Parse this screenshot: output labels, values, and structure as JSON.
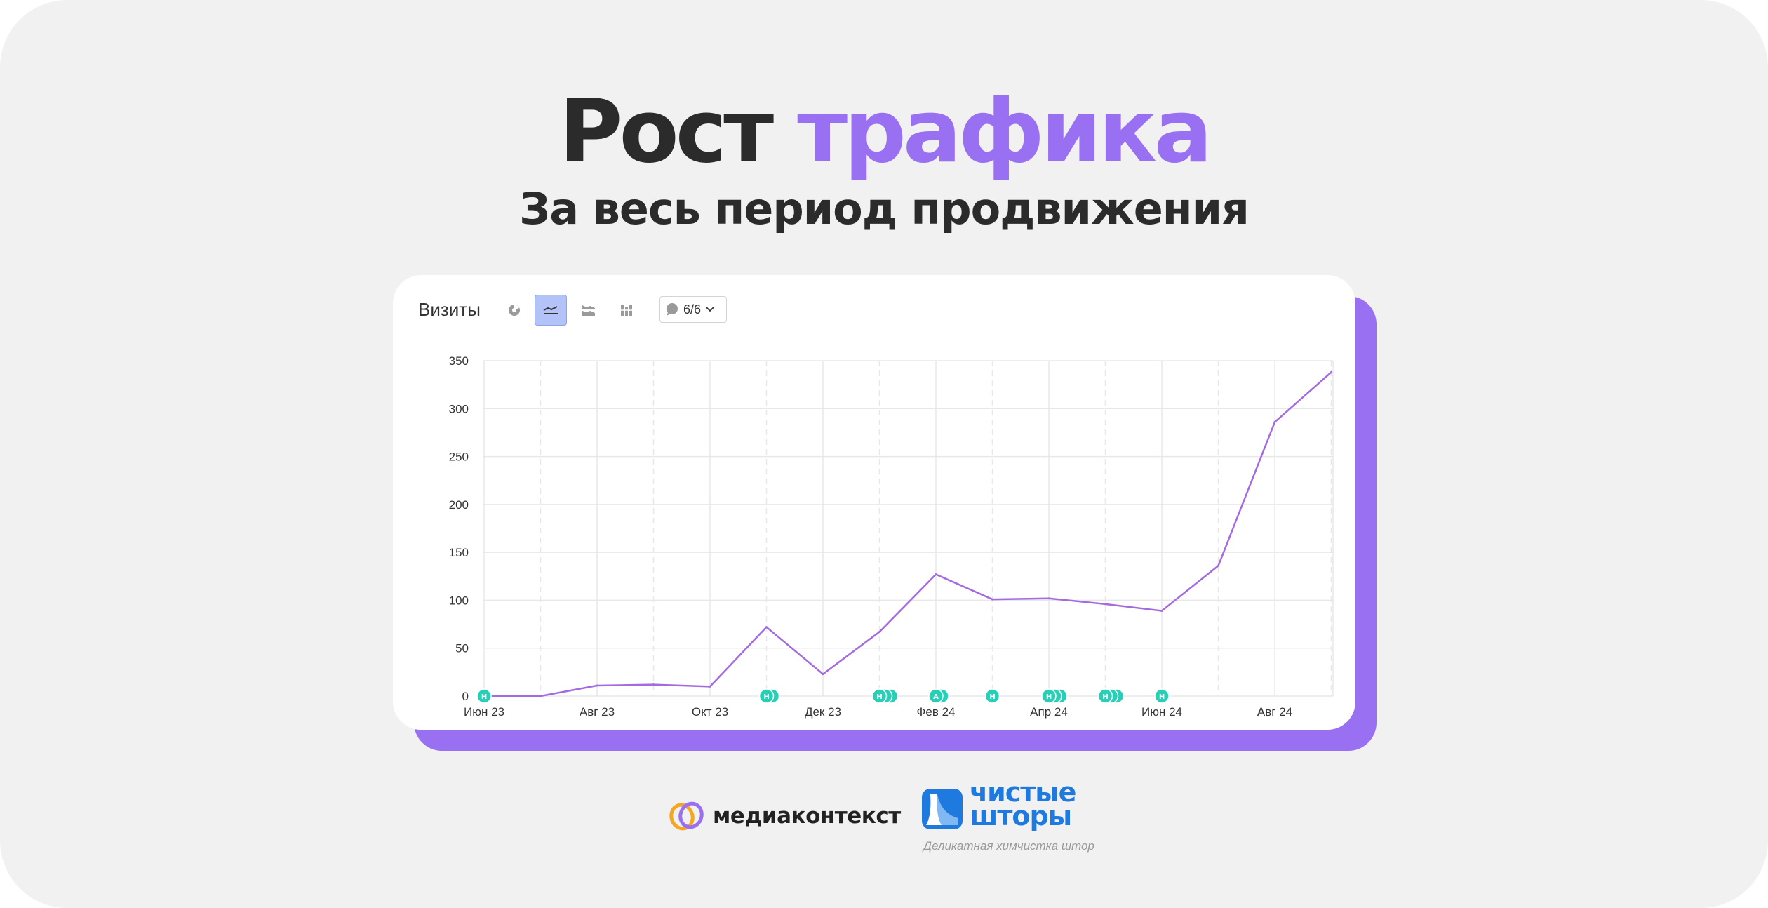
{
  "heading": {
    "title_main": "Рост",
    "title_accent": "трафика",
    "subtitle": "За весь период продвижения"
  },
  "colors": {
    "background": "#f1f1f1",
    "accent": "#9a70f2",
    "line": "#a46ae0",
    "note_marker": "#25d0b6",
    "grid": "#e8e8e8"
  },
  "toolbar": {
    "title": "Визиты",
    "icons": [
      "pie-chart-icon",
      "line-chart-icon",
      "area-stack-icon",
      "bar-chart-icon"
    ],
    "active_icon": "line-chart-icon",
    "notes_label": "6/6",
    "notes_icon": "comment-icon"
  },
  "chart_data": {
    "type": "line",
    "title": "",
    "xlabel": "",
    "ylabel": "",
    "ylim": [
      0,
      350
    ],
    "yticks": [
      "0",
      "50",
      "100",
      "150",
      "200",
      "250",
      "300",
      "350"
    ],
    "x_tick_labels": [
      "Июн 23",
      "Авг 23",
      "Окт 23",
      "Дек 23",
      "Фев 24",
      "Апр 24",
      "Июн 24",
      "Авг 24"
    ],
    "x": [
      "Июн 23",
      "Июл 23",
      "Авг 23",
      "Сен 23",
      "Окт 23",
      "Ноя 23",
      "Дек 23",
      "Янв 24",
      "Фев 24",
      "Мар 24",
      "Апр 24",
      "Май 24",
      "Июн 24",
      "Июл 24",
      "Авг 24",
      "Сен 24"
    ],
    "series": [
      {
        "values": [
          0,
          0,
          11,
          12,
          10,
          72,
          23,
          67,
          127,
          101,
          102,
          96,
          89,
          136,
          286,
          338
        ]
      }
    ],
    "note_markers": [
      {
        "x": "Июн 23",
        "count": 1,
        "label": "Н"
      },
      {
        "x": "Ноя 23",
        "count": 2,
        "label": "Н"
      },
      {
        "x": "Янв 24",
        "count": 3,
        "label": "Н"
      },
      {
        "x": "Фев 24",
        "count": 2,
        "label": "А"
      },
      {
        "x": "Мар 24",
        "count": 1,
        "label": "Н"
      },
      {
        "x": "Апр 24",
        "count": 3,
        "label": "Н"
      },
      {
        "x": "Май 24",
        "count": 3,
        "label": "Н"
      },
      {
        "x": "Июн 24",
        "count": 1,
        "label": "Н"
      }
    ],
    "grid": true,
    "legend": "none"
  },
  "footer": {
    "brand1_name": "медиаконтекст",
    "brand2_name": "чистые\nшторы",
    "brand2_tagline": "Деликатная химчистка штор"
  }
}
